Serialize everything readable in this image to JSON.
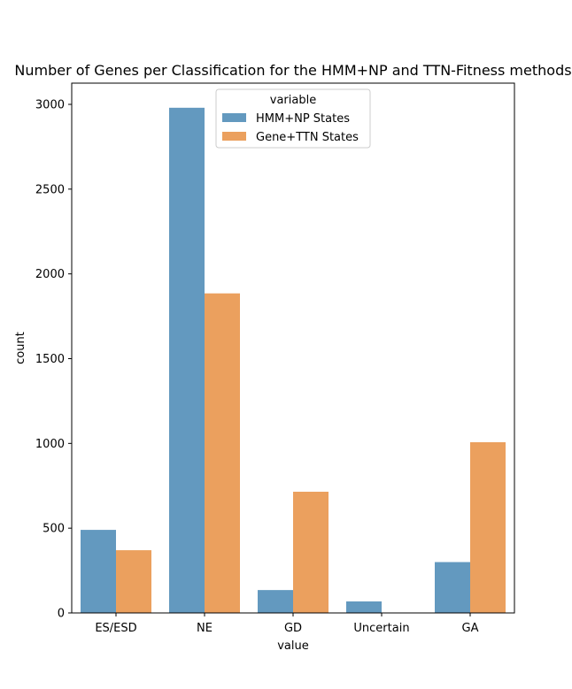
{
  "chart_data": {
    "type": "bar",
    "title": "Number of Genes per Classification for the HMM+NP and TTN-Fitness methods",
    "xlabel": "value",
    "ylabel": "count",
    "categories": [
      "ES/ESD",
      "NE",
      "GD",
      "Uncertain",
      "GA"
    ],
    "series": [
      {
        "name": "HMM+NP States",
        "color": "#6399bf",
        "values": [
          490,
          2980,
          135,
          68,
          300
        ]
      },
      {
        "name": "Gene+TTN States",
        "color": "#eba05e",
        "values": [
          370,
          1885,
          715,
          0,
          1007
        ]
      }
    ],
    "ylim": [
      0,
      3000
    ],
    "yticks": [
      0,
      500,
      1000,
      1500,
      2000,
      2500,
      3000
    ],
    "grid": false,
    "legend": {
      "title": "variable",
      "placement": "upper center"
    }
  }
}
